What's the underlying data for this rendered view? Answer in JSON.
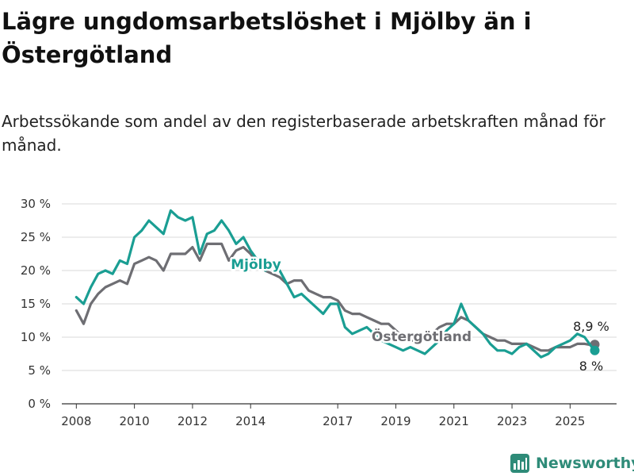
{
  "title": "Lägre ungdomsarbetslöshet i Mjölby än i Östergötland",
  "subtitle": "Arbetssökande som andel av den registerbaserade arbetskraften månad för månad.",
  "brand": {
    "name": "Newsworthy",
    "icon": "bar-chart-icon"
  },
  "colors": {
    "mjolby": "#1a9e93",
    "ostergotland": "#6e6e73",
    "grid": "#d9d9d9",
    "axis": "#333333"
  },
  "chart_data": {
    "type": "line",
    "x_unit": "year",
    "xticks": [
      2008,
      2010,
      2012,
      2014,
      2017,
      2019,
      2021,
      2023,
      2025
    ],
    "ylim": [
      0,
      30
    ],
    "yticks": [
      0,
      5,
      10,
      15,
      20,
      25,
      30
    ],
    "ytick_labels": [
      "0 %",
      "5 %",
      "10 %",
      "15 %",
      "20 %",
      "25 %",
      "30 %"
    ],
    "grid": true,
    "series": [
      {
        "name": "Mjölby",
        "color": "#1a9e93",
        "end_label": "8 %",
        "points": [
          [
            2008.0,
            16.0
          ],
          [
            2008.25,
            15.0
          ],
          [
            2008.5,
            17.5
          ],
          [
            2008.75,
            19.5
          ],
          [
            2009.0,
            20.0
          ],
          [
            2009.25,
            19.5
          ],
          [
            2009.5,
            21.5
          ],
          [
            2009.75,
            21.0
          ],
          [
            2010.0,
            25.0
          ],
          [
            2010.25,
            26.0
          ],
          [
            2010.5,
            27.5
          ],
          [
            2010.75,
            26.5
          ],
          [
            2011.0,
            25.5
          ],
          [
            2011.25,
            29.0
          ],
          [
            2011.5,
            28.0
          ],
          [
            2011.75,
            27.5
          ],
          [
            2012.0,
            28.0
          ],
          [
            2012.25,
            22.5
          ],
          [
            2012.5,
            25.5
          ],
          [
            2012.75,
            26.0
          ],
          [
            2013.0,
            27.5
          ],
          [
            2013.25,
            26.0
          ],
          [
            2013.5,
            24.0
          ],
          [
            2013.75,
            25.0
          ],
          [
            2014.0,
            23.0
          ],
          [
            2014.25,
            21.5
          ],
          [
            2014.5,
            20.0
          ],
          [
            2014.75,
            20.5
          ],
          [
            2015.0,
            20.0
          ],
          [
            2015.25,
            18.0
          ],
          [
            2015.5,
            16.0
          ],
          [
            2015.75,
            16.5
          ],
          [
            2016.0,
            15.5
          ],
          [
            2016.25,
            14.5
          ],
          [
            2016.5,
            13.5
          ],
          [
            2016.75,
            15.0
          ],
          [
            2017.0,
            15.0
          ],
          [
            2017.25,
            11.5
          ],
          [
            2017.5,
            10.5
          ],
          [
            2017.75,
            11.0
          ],
          [
            2018.0,
            11.5
          ],
          [
            2018.25,
            10.5
          ],
          [
            2018.5,
            9.5
          ],
          [
            2018.75,
            9.0
          ],
          [
            2019.0,
            8.5
          ],
          [
            2019.25,
            8.0
          ],
          [
            2019.5,
            8.5
          ],
          [
            2019.75,
            8.0
          ],
          [
            2020.0,
            7.5
          ],
          [
            2020.25,
            8.5
          ],
          [
            2020.5,
            9.5
          ],
          [
            2020.75,
            11.0
          ],
          [
            2021.0,
            12.0
          ],
          [
            2021.25,
            15.0
          ],
          [
            2021.5,
            12.5
          ],
          [
            2021.75,
            11.5
          ],
          [
            2022.0,
            10.5
          ],
          [
            2022.25,
            9.0
          ],
          [
            2022.5,
            8.0
          ],
          [
            2022.75,
            8.0
          ],
          [
            2023.0,
            7.5
          ],
          [
            2023.25,
            8.5
          ],
          [
            2023.5,
            9.0
          ],
          [
            2023.75,
            8.0
          ],
          [
            2024.0,
            7.0
          ],
          [
            2024.25,
            7.5
          ],
          [
            2024.5,
            8.5
          ],
          [
            2024.75,
            9.0
          ],
          [
            2025.0,
            9.5
          ],
          [
            2025.25,
            10.5
          ],
          [
            2025.5,
            10.0
          ],
          [
            2025.75,
            8.5
          ],
          [
            2025.85,
            8.0
          ]
        ]
      },
      {
        "name": "Östergötland",
        "color": "#6e6e73",
        "end_label": "8,9 %",
        "points": [
          [
            2008.0,
            14.0
          ],
          [
            2008.25,
            12.0
          ],
          [
            2008.5,
            15.0
          ],
          [
            2008.75,
            16.5
          ],
          [
            2009.0,
            17.5
          ],
          [
            2009.25,
            18.0
          ],
          [
            2009.5,
            18.5
          ],
          [
            2009.75,
            18.0
          ],
          [
            2010.0,
            21.0
          ],
          [
            2010.25,
            21.5
          ],
          [
            2010.5,
            22.0
          ],
          [
            2010.75,
            21.5
          ],
          [
            2011.0,
            20.0
          ],
          [
            2011.25,
            22.5
          ],
          [
            2011.5,
            22.5
          ],
          [
            2011.75,
            22.5
          ],
          [
            2012.0,
            23.5
          ],
          [
            2012.25,
            21.5
          ],
          [
            2012.5,
            24.0
          ],
          [
            2012.75,
            24.0
          ],
          [
            2013.0,
            24.0
          ],
          [
            2013.25,
            21.5
          ],
          [
            2013.5,
            23.0
          ],
          [
            2013.75,
            23.5
          ],
          [
            2014.0,
            22.5
          ],
          [
            2014.25,
            21.0
          ],
          [
            2014.5,
            20.0
          ],
          [
            2014.75,
            19.5
          ],
          [
            2015.0,
            19.0
          ],
          [
            2015.25,
            18.0
          ],
          [
            2015.5,
            18.5
          ],
          [
            2015.75,
            18.5
          ],
          [
            2016.0,
            17.0
          ],
          [
            2016.25,
            16.5
          ],
          [
            2016.5,
            16.0
          ],
          [
            2016.75,
            16.0
          ],
          [
            2017.0,
            15.5
          ],
          [
            2017.25,
            14.0
          ],
          [
            2017.5,
            13.5
          ],
          [
            2017.75,
            13.5
          ],
          [
            2018.0,
            13.0
          ],
          [
            2018.25,
            12.5
          ],
          [
            2018.5,
            12.0
          ],
          [
            2018.75,
            12.0
          ],
          [
            2019.0,
            11.0
          ],
          [
            2019.25,
            10.0
          ],
          [
            2019.5,
            9.5
          ],
          [
            2019.75,
            9.5
          ],
          [
            2020.0,
            9.5
          ],
          [
            2020.25,
            10.5
          ],
          [
            2020.5,
            11.5
          ],
          [
            2020.75,
            12.0
          ],
          [
            2021.0,
            12.0
          ],
          [
            2021.25,
            13.0
          ],
          [
            2021.5,
            12.5
          ],
          [
            2021.75,
            11.5
          ],
          [
            2022.0,
            10.5
          ],
          [
            2022.25,
            10.0
          ],
          [
            2022.5,
            9.5
          ],
          [
            2022.75,
            9.5
          ],
          [
            2023.0,
            9.0
          ],
          [
            2023.25,
            9.0
          ],
          [
            2023.5,
            9.0
          ],
          [
            2023.75,
            8.5
          ],
          [
            2024.0,
            8.0
          ],
          [
            2024.25,
            8.0
          ],
          [
            2024.5,
            8.5
          ],
          [
            2024.75,
            8.5
          ],
          [
            2025.0,
            8.5
          ],
          [
            2025.25,
            9.0
          ],
          [
            2025.5,
            9.0
          ],
          [
            2025.75,
            8.8
          ],
          [
            2025.85,
            8.9
          ]
        ]
      }
    ]
  }
}
